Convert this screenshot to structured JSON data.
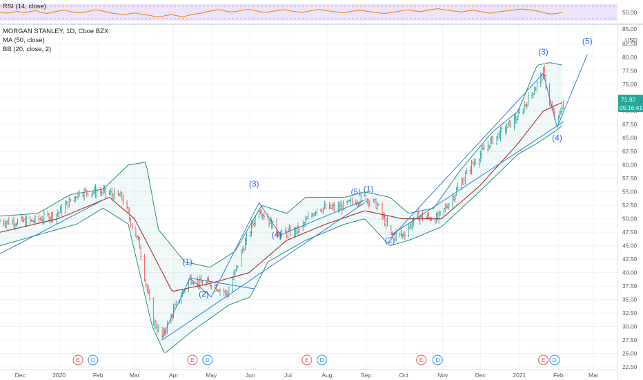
{
  "legend": {
    "rsi_label": "RSI (14, close)",
    "title": "MORGAN STANLEY, 1D, Cboe BZX",
    "ma_label": "MA (50, close)",
    "bb_label": "BB (20, close, 2)"
  },
  "rsi_pane": {
    "level_label": "50.00",
    "series": [
      51,
      48,
      50,
      53,
      49,
      52,
      55,
      50,
      47,
      51,
      54,
      56,
      52,
      49,
      50,
      53,
      57,
      55,
      51,
      48,
      46,
      44,
      47,
      49,
      45,
      43,
      40,
      38,
      42,
      44,
      41,
      39,
      43,
      46,
      48,
      52,
      55,
      57,
      54,
      51,
      53,
      56,
      58,
      55,
      52,
      50,
      53,
      55,
      57,
      54,
      52,
      50,
      53,
      56,
      58,
      55,
      53,
      51,
      49,
      52,
      54,
      56,
      53,
      51,
      49,
      47,
      50,
      52,
      55,
      57,
      54,
      52,
      55,
      58,
      60,
      57,
      55,
      53,
      51,
      54,
      56,
      53,
      50,
      48,
      51,
      53,
      55,
      57,
      59,
      58,
      56,
      53,
      49,
      46,
      47,
      50
    ]
  },
  "price_axis": {
    "unit_label": "USD",
    "top_partial_label": "85.00",
    "ticks": [
      "82.50",
      "80.00",
      "77.50",
      "75.00",
      "72.50",
      "70.00",
      "67.50",
      "65.00",
      "62.50",
      "60.00",
      "57.50",
      "55.00",
      "52.50",
      "50.00",
      "47.50",
      "45.00",
      "42.50",
      "40.00",
      "37.50",
      "35.00",
      "32.50",
      "30.00",
      "27.50",
      "25.00",
      "22.50"
    ],
    "last_price_label": "71.92",
    "countdown_label": "05:16:41",
    "accent_color": "#26a69a"
  },
  "time_axis": {
    "labels": [
      "Dec",
      "2020",
      "Feb",
      "Mar",
      "Apr",
      "May",
      "Jun",
      "Jul",
      "Aug",
      "Sep",
      "Oct",
      "Nov",
      "Dec",
      "2021",
      "Feb",
      "Mar"
    ]
  },
  "events": [
    {
      "letter": "E",
      "color": "#ef5350"
    },
    {
      "letter": "D",
      "color": "#2196f3"
    },
    {
      "letter": "E",
      "color": "#ef5350"
    },
    {
      "letter": "D",
      "color": "#2196f3"
    },
    {
      "letter": "E",
      "color": "#ef5350"
    },
    {
      "letter": "D",
      "color": "#2196f3"
    },
    {
      "letter": "E",
      "color": "#ef5350"
    },
    {
      "letter": "D",
      "color": "#2196f3"
    },
    {
      "letter": "E",
      "color": "#ef5350"
    },
    {
      "letter": "D",
      "color": "#2196f3"
    }
  ],
  "chart_data": {
    "type": "candlestick",
    "symbol": "MORGAN STANLEY",
    "interval": "1D",
    "exchange": "Cboe BZX",
    "ylim": [
      22,
      86
    ],
    "xlim": [
      "2019-11-15",
      "2021-03-20"
    ],
    "grid": true,
    "price_keypoints": [
      [
        "2019-11-15",
        49.5
      ],
      [
        "2019-12-10",
        49.5
      ],
      [
        "2019-12-31",
        51.0
      ],
      [
        "2020-01-17",
        55.0
      ],
      [
        "2020-02-05",
        55.0
      ],
      [
        "2020-02-20",
        54.0
      ],
      [
        "2020-03-05",
        45.0
      ],
      [
        "2020-03-10",
        38.0
      ],
      [
        "2020-03-16",
        31.0
      ],
      [
        "2020-03-23",
        28.0
      ],
      [
        "2020-04-01",
        33.0
      ],
      [
        "2020-04-14",
        39.0
      ],
      [
        "2020-04-22",
        38.0
      ],
      [
        "2020-05-01",
        38.0
      ],
      [
        "2020-05-14",
        36.0
      ],
      [
        "2020-05-27",
        45.0
      ],
      [
        "2020-06-08",
        52.0
      ],
      [
        "2020-06-25",
        47.0
      ],
      [
        "2020-07-10",
        48.0
      ],
      [
        "2020-07-24",
        52.0
      ],
      [
        "2020-08-10",
        52.0
      ],
      [
        "2020-08-31",
        54.0
      ],
      [
        "2020-09-10",
        52.5
      ],
      [
        "2020-09-21",
        47.0
      ],
      [
        "2020-09-30",
        47.0
      ],
      [
        "2020-10-12",
        50.5
      ],
      [
        "2020-10-28",
        50.0
      ],
      [
        "2020-11-09",
        54.0
      ],
      [
        "2020-11-24",
        60.0
      ],
      [
        "2020-12-08",
        64.0
      ],
      [
        "2020-12-31",
        69.0
      ],
      [
        "2021-01-20",
        77.0
      ],
      [
        "2021-01-27",
        70.0
      ],
      [
        "2021-01-31",
        67.5
      ],
      [
        "2021-02-05",
        71.92
      ]
    ],
    "ma50_keypoints": [
      [
        "2019-11-15",
        47.5
      ],
      [
        "2019-12-31",
        50.0
      ],
      [
        "2020-02-10",
        54.0
      ],
      [
        "2020-03-01",
        50.0
      ],
      [
        "2020-03-31",
        36.5
      ],
      [
        "2020-04-30",
        38.0
      ],
      [
        "2020-05-31",
        40.0
      ],
      [
        "2020-06-30",
        46.0
      ],
      [
        "2020-07-31",
        49.0
      ],
      [
        "2020-08-31",
        51.5
      ],
      [
        "2020-09-30",
        50.0
      ],
      [
        "2020-10-31",
        50.0
      ],
      [
        "2020-11-30",
        56.0
      ],
      [
        "2020-12-31",
        64.0
      ],
      [
        "2021-01-20",
        70.0
      ],
      [
        "2021-02-05",
        71.7
      ]
    ],
    "bb_upper_keypoints": [
      [
        "2019-11-15",
        50.5
      ],
      [
        "2019-12-15",
        51.0
      ],
      [
        "2020-01-10",
        54.5
      ],
      [
        "2020-02-05",
        55.5
      ],
      [
        "2020-02-25",
        60.0
      ],
      [
        "2020-03-10",
        60.5
      ],
      [
        "2020-03-20",
        48.0
      ],
      [
        "2020-04-10",
        42.0
      ],
      [
        "2020-04-30",
        41.0
      ],
      [
        "2020-05-20",
        44.0
      ],
      [
        "2020-06-10",
        52.5
      ],
      [
        "2020-06-30",
        51.0
      ],
      [
        "2020-07-15",
        54.0
      ],
      [
        "2020-08-15",
        54.0
      ],
      [
        "2020-08-31",
        55.0
      ],
      [
        "2020-09-20",
        54.0
      ],
      [
        "2020-10-05",
        51.0
      ],
      [
        "2020-10-25",
        52.0
      ],
      [
        "2020-11-15",
        59.0
      ],
      [
        "2020-12-10",
        66.0
      ],
      [
        "2020-12-31",
        70.0
      ],
      [
        "2021-01-15",
        78.5
      ],
      [
        "2021-01-25",
        79.0
      ],
      [
        "2021-02-05",
        78.5
      ]
    ],
    "bb_lower_keypoints": [
      [
        "2019-11-15",
        45.0
      ],
      [
        "2019-12-15",
        47.0
      ],
      [
        "2020-01-15",
        49.0
      ],
      [
        "2020-02-05",
        52.0
      ],
      [
        "2020-02-25",
        49.0
      ],
      [
        "2020-03-15",
        30.0
      ],
      [
        "2020-03-25",
        25.0
      ],
      [
        "2020-04-15",
        29.0
      ],
      [
        "2020-05-15",
        34.0
      ],
      [
        "2020-06-01",
        35.5
      ],
      [
        "2020-06-15",
        42.0
      ],
      [
        "2020-07-15",
        46.0
      ],
      [
        "2020-08-15",
        49.0
      ],
      [
        "2020-08-31",
        50.0
      ],
      [
        "2020-09-20",
        45.0
      ],
      [
        "2020-10-05",
        46.0
      ],
      [
        "2020-10-31",
        48.5
      ],
      [
        "2020-11-30",
        55.0
      ],
      [
        "2020-12-31",
        62.0
      ],
      [
        "2021-01-15",
        64.0
      ],
      [
        "2021-01-31",
        66.5
      ],
      [
        "2021-02-05",
        67.5
      ]
    ],
    "elliott_labels": [
      {
        "label": "(1)",
        "date": "2020-04-12",
        "price": 41.5
      },
      {
        "label": "(2)",
        "date": "2020-04-25",
        "price": 35.5
      },
      {
        "label": "(3)",
        "date": "2020-06-04",
        "price": 56.0
      },
      {
        "label": "(4)",
        "date": "2020-06-22",
        "price": 46.5
      },
      {
        "label": "(5)",
        "date": "2020-08-24",
        "price": 54.5
      },
      {
        "label": "(1)",
        "date": "2020-09-03",
        "price": 55.0
      },
      {
        "label": "(2)",
        "date": "2020-09-20",
        "price": 45.5
      },
      {
        "label": "(3)",
        "date": "2021-01-20",
        "price": 80.5
      },
      {
        "label": "(4)",
        "date": "2021-01-31",
        "price": 64.5
      },
      {
        "label": "(5)",
        "date": "2021-02-24",
        "price": 82.5
      }
    ],
    "drawing_lines": [
      {
        "from": [
          "2020-03-23",
          28.0
        ],
        "to": [
          "2020-04-14",
          39.0
        ]
      },
      {
        "from": [
          "2020-04-14",
          39.0
        ],
        "to": [
          "2020-05-01",
          35.5
        ]
      },
      {
        "from": [
          "2020-05-01",
          35.5
        ],
        "to": [
          "2020-06-08",
          53.0
        ]
      },
      {
        "from": [
          "2020-06-08",
          53.0
        ],
        "to": [
          "2020-06-25",
          47.0
        ]
      },
      {
        "from": [
          "2020-06-25",
          47.0
        ],
        "to": [
          "2020-08-31",
          53.5
        ]
      },
      {
        "from": [
          "2020-03-23",
          27.5
        ],
        "to": [
          "2020-08-31",
          53.0
        ]
      },
      {
        "from": [
          "2020-04-14",
          39.0
        ],
        "to": [
          "2020-06-04",
          37.0
        ]
      },
      {
        "from": [
          "2020-09-21",
          46.5
        ],
        "to": [
          "2021-01-20",
          77.0
        ]
      },
      {
        "from": [
          "2021-01-20",
          77.0
        ],
        "to": [
          "2021-01-31",
          67.0
        ]
      },
      {
        "from": [
          "2021-01-31",
          67.0
        ],
        "to": [
          "2021-02-24",
          80.5
        ]
      },
      {
        "from": [
          "2020-09-21",
          47.0
        ],
        "to": [
          "2021-02-05",
          68.0
        ]
      },
      {
        "from": [
          "2019-11-15",
          43.5
        ],
        "to": [
          "2020-02-05",
          53.5
        ]
      }
    ]
  }
}
